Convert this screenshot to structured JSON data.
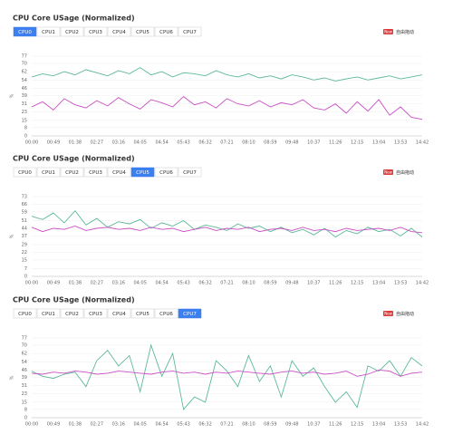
{
  "panels": [
    {
      "tabs": [
        "CPU0",
        "CPU1",
        "CPU2",
        "CPU3",
        "CPU4",
        "CPU5",
        "CPU6",
        "CPU7"
      ],
      "selected": 0,
      "badge": "New",
      "badge_text": "自由拖动"
    },
    {
      "tabs": [
        "CPU0",
        "CPU1",
        "CPU2",
        "CPU3",
        "CPU4",
        "CPU5",
        "CPU6",
        "CPU7"
      ],
      "selected": 5,
      "badge": "New",
      "badge_text": "自由拖动"
    },
    {
      "tabs": [
        "CPU0",
        "CPU1",
        "CPU2",
        "CPU3",
        "CPU4",
        "CPU5",
        "CPU6",
        "CPU7"
      ],
      "selected": 7,
      "badge": "New",
      "badge_text": "自由拖动"
    }
  ],
  "chart_data": [
    {
      "type": "line",
      "title": "CPU Core USage (Normalized)",
      "y_label": "%",
      "categories": [
        "00:00",
        null,
        "00:49",
        null,
        "01:38",
        null,
        "02:27",
        null,
        "03:16",
        null,
        "04:05",
        null,
        "04:54",
        null,
        "05:43",
        null,
        "06:32",
        null,
        "07:21",
        null,
        "08:10",
        null,
        "08:59",
        null,
        "09:48",
        null,
        "10:37",
        null,
        "11:26",
        null,
        "12:15",
        null,
        "13:04",
        null,
        "13:53",
        null,
        "14:42"
      ],
      "ylim": [
        0,
        77
      ],
      "yticks": [
        0,
        8,
        15,
        23,
        31,
        39,
        46,
        54,
        62,
        70,
        77
      ],
      "grid": true,
      "series": [
        {
          "color": "#5cb89a",
          "values": [
            57,
            60,
            58,
            62,
            59,
            64,
            61,
            58,
            63,
            60,
            66,
            59,
            62,
            57,
            61,
            60,
            58,
            63,
            59,
            57,
            60,
            56,
            58,
            55,
            59,
            57,
            54,
            56,
            53,
            55,
            57,
            54,
            56,
            58,
            55,
            57,
            59
          ]
        },
        {
          "color": "#c94fc4",
          "values": [
            28,
            33,
            25,
            36,
            30,
            27,
            34,
            29,
            37,
            31,
            26,
            35,
            32,
            28,
            38,
            30,
            33,
            27,
            36,
            31,
            29,
            34,
            28,
            32,
            30,
            35,
            27,
            25,
            31,
            22,
            33,
            24,
            35,
            20,
            28,
            18,
            16
          ]
        }
      ]
    },
    {
      "type": "line",
      "title": "CPU Core USage (Normalized)",
      "y_label": "%",
      "categories": [
        "00:00",
        null,
        "00:49",
        null,
        "01:38",
        null,
        "02:27",
        null,
        "03:16",
        null,
        "04:05",
        null,
        "04:54",
        null,
        "05:43",
        null,
        "06:32",
        null,
        "07:21",
        null,
        "08:10",
        null,
        "08:59",
        null,
        "09:48",
        null,
        "10:37",
        null,
        "11:26",
        null,
        "12:15",
        null,
        "13:04",
        null,
        "13:53",
        null,
        "14:42"
      ],
      "ylim": [
        0,
        73
      ],
      "yticks": [
        0,
        7,
        15,
        22,
        29,
        37,
        44,
        51,
        59,
        66,
        73
      ],
      "grid": true,
      "series": [
        {
          "color": "#5cb89a",
          "values": [
            55,
            52,
            58,
            49,
            60,
            47,
            53,
            45,
            50,
            48,
            52,
            44,
            49,
            46,
            51,
            43,
            47,
            45,
            42,
            48,
            44,
            46,
            41,
            45,
            40,
            43,
            38,
            44,
            36,
            42,
            39,
            45,
            41,
            43,
            37,
            44,
            36
          ]
        },
        {
          "color": "#c94fc4",
          "values": [
            45,
            41,
            44,
            43,
            46,
            42,
            44,
            45,
            43,
            44,
            42,
            45,
            43,
            44,
            41,
            43,
            45,
            42,
            44,
            43,
            45,
            41,
            43,
            44,
            42,
            45,
            42,
            43,
            41,
            44,
            42,
            43,
            44,
            42,
            45,
            41,
            40
          ]
        }
      ]
    },
    {
      "type": "line",
      "title": "CPU Core USage (Normalized)",
      "y_label": "%",
      "categories": [
        "00:00",
        null,
        "00:49",
        null,
        "01:38",
        null,
        "02:27",
        null,
        "03:16",
        null,
        "04:05",
        null,
        "04:54",
        null,
        "05:43",
        null,
        "06:32",
        null,
        "07:21",
        null,
        "08:10",
        null,
        "08:59",
        null,
        "09:48",
        null,
        "10:37",
        null,
        "11:26",
        null,
        "12:15",
        null,
        "13:04",
        null,
        "13:53",
        null,
        "14:42"
      ],
      "ylim": [
        0,
        77
      ],
      "yticks": [
        0,
        8,
        15,
        23,
        31,
        39,
        46,
        54,
        62,
        70,
        77
      ],
      "grid": true,
      "series": [
        {
          "color": "#5cb89a",
          "values": [
            45,
            40,
            38,
            42,
            44,
            30,
            55,
            65,
            50,
            60,
            25,
            70,
            40,
            62,
            8,
            20,
            15,
            55,
            45,
            30,
            60,
            35,
            50,
            20,
            55,
            40,
            48,
            30,
            15,
            25,
            10,
            50,
            45,
            55,
            40,
            58,
            50
          ]
        },
        {
          "color": "#c94fc4",
          "values": [
            43,
            42,
            44,
            43,
            45,
            44,
            42,
            43,
            45,
            44,
            43,
            42,
            44,
            45,
            43,
            44,
            42,
            44,
            43,
            45,
            44,
            43,
            42,
            44,
            45,
            43,
            44,
            42,
            43,
            45,
            40,
            42,
            46,
            45,
            40,
            43,
            44
          ]
        }
      ]
    }
  ]
}
